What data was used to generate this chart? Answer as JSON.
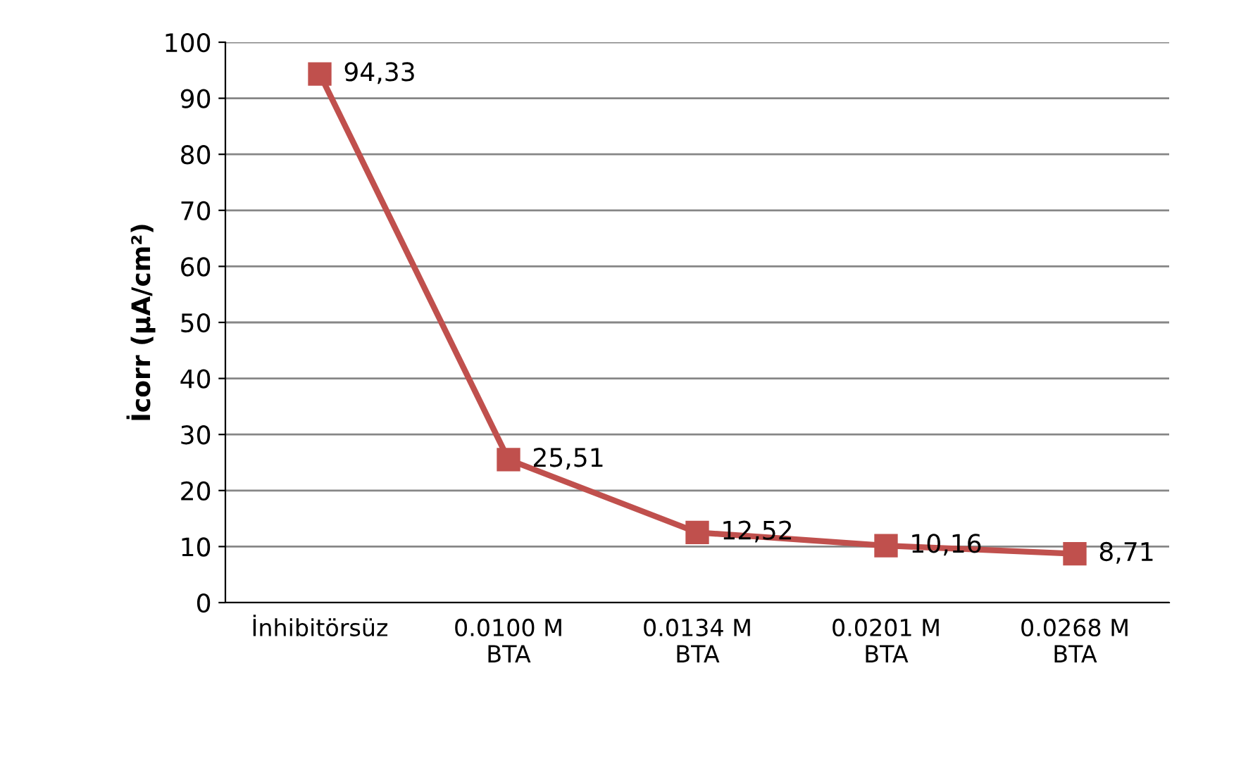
{
  "chart_data": {
    "type": "line",
    "ylabel": "İcorr (µA/cm²)",
    "categories": [
      "İnhibitörsüz",
      "0.0100 M\nBTA",
      "0.0134 M\nBTA",
      "0.0201 M\nBTA",
      "0.0268 M\nBTA"
    ],
    "series": [
      {
        "color": "#c0504d",
        "values": [
          94.33,
          25.51,
          12.52,
          10.16,
          8.71
        ],
        "value_labels": [
          "94,33",
          "25,51",
          "12,52",
          "10,16",
          "8,71"
        ]
      }
    ],
    "ylim": [
      0,
      100
    ],
    "yticks": [
      0,
      10,
      20,
      30,
      40,
      50,
      60,
      70,
      80,
      90,
      100
    ],
    "grid": "y",
    "marker": "square",
    "line_style": "solid"
  }
}
